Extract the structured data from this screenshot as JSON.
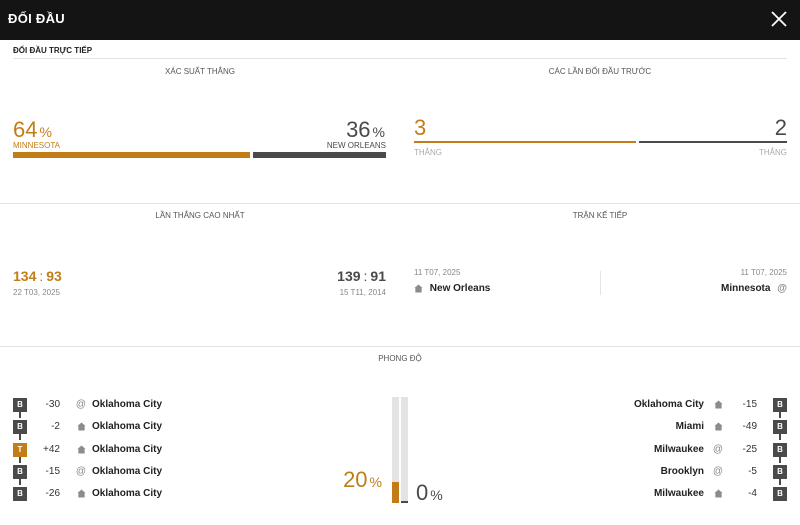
{
  "header": {
    "title": "ĐỐI ĐẦU"
  },
  "subheader": "ĐỐI ĐẦU TRỰC TIẾP",
  "probability": {
    "label": "XÁC SUẤT THẮNG",
    "home": {
      "value": "64",
      "unit": "%",
      "team": "MINNESOTA",
      "fraction": 0.64
    },
    "away": {
      "value": "36",
      "unit": "%",
      "team": "NEW ORLEANS",
      "fraction": 0.36
    }
  },
  "previous": {
    "label": "CÁC LẦN ĐỐI ĐẦU TRƯỚC",
    "home": {
      "wins": "3",
      "label": "THẮNG"
    },
    "away": {
      "wins": "2",
      "label": "THẮNG"
    }
  },
  "biggest_win": {
    "label": "LẦN THẮNG CAO NHẤT",
    "home": {
      "score_a": "134",
      "score_b": "93",
      "sep": ":",
      "date": "22 T03, 2025"
    },
    "away": {
      "score_a": "139",
      "score_b": "91",
      "sep": ":",
      "date": "15 T11, 2014"
    }
  },
  "next_match": {
    "label": "TRẬN KẾ TIẾP",
    "left": {
      "date": "11 T07, 2025",
      "team": "New Orleans",
      "venue": "home"
    },
    "right": {
      "date": "11 T07, 2025",
      "team": "Minnesota",
      "venue": "away"
    }
  },
  "form": {
    "label": "PHONG ĐỘ",
    "home_pct": {
      "value": "20",
      "unit": "%",
      "fraction": 0.2
    },
    "away_pct": {
      "value": "0",
      "unit": "%",
      "fraction": 0.0
    },
    "home_rows": [
      {
        "result": "B",
        "diff": "-30",
        "venue": "away",
        "opponent": "Oklahoma City"
      },
      {
        "result": "B",
        "diff": "-2",
        "venue": "home",
        "opponent": "Oklahoma City"
      },
      {
        "result": "T",
        "diff": "+42",
        "venue": "home",
        "opponent": "Oklahoma City"
      },
      {
        "result": "B",
        "diff": "-15",
        "venue": "away",
        "opponent": "Oklahoma City"
      },
      {
        "result": "B",
        "diff": "-26",
        "venue": "home",
        "opponent": "Oklahoma City"
      }
    ],
    "away_rows": [
      {
        "result": "B",
        "diff": "-15",
        "venue": "home",
        "opponent": "Oklahoma City"
      },
      {
        "result": "B",
        "diff": "-49",
        "venue": "home",
        "opponent": "Miami"
      },
      {
        "result": "B",
        "diff": "-25",
        "venue": "away",
        "opponent": "Milwaukee"
      },
      {
        "result": "B",
        "diff": "-5",
        "venue": "away",
        "opponent": "Brooklyn"
      },
      {
        "result": "B",
        "diff": "-4",
        "venue": "home",
        "opponent": "Milwaukee"
      }
    ]
  },
  "colors": {
    "accent": "#c27d18",
    "dark": "#4a4a4a",
    "loss_badge": "#4a4a4a",
    "win_badge": "#c27d18"
  }
}
